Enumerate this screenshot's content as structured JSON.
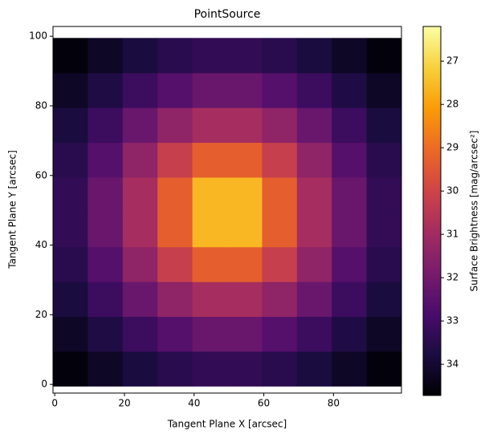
{
  "chart_data": {
    "type": "heatmap",
    "title": "PointSource",
    "x_label": "Tangent Plane X [arcsec]",
    "y_label": "Tangent Plane Y [arcsec]",
    "colorbar_label": "Surface Brightness [mag/arcsec²]",
    "x": [
      4.5,
      14.5,
      24.5,
      34.5,
      44.5,
      54.5,
      64.5,
      74.5,
      84.5,
      94.5
    ],
    "y": [
      4.5,
      14.5,
      24.5,
      34.5,
      44.5,
      54.5,
      64.5,
      74.5,
      84.5,
      94.5
    ],
    "z": [
      [
        34.6,
        34.2,
        33.8,
        33.5,
        33.3,
        33.3,
        33.5,
        33.8,
        34.2,
        34.6
      ],
      [
        34.2,
        33.7,
        33.1,
        32.6,
        32.2,
        32.2,
        32.6,
        33.1,
        33.7,
        34.2
      ],
      [
        33.8,
        33.1,
        32.2,
        31.4,
        30.9,
        30.9,
        31.4,
        32.2,
        33.1,
        33.8
      ],
      [
        33.5,
        32.6,
        31.4,
        30.2,
        29.3,
        29.3,
        30.2,
        31.4,
        32.6,
        33.5
      ],
      [
        33.3,
        32.2,
        30.9,
        29.3,
        27.6,
        27.6,
        29.3,
        30.9,
        32.2,
        33.3
      ],
      [
        33.3,
        32.2,
        30.9,
        29.3,
        27.6,
        27.6,
        29.3,
        30.9,
        32.2,
        33.3
      ],
      [
        33.5,
        32.6,
        31.4,
        30.2,
        29.3,
        29.3,
        30.2,
        31.4,
        32.6,
        33.5
      ],
      [
        33.8,
        33.1,
        32.2,
        31.4,
        30.9,
        30.9,
        31.4,
        32.2,
        33.1,
        33.8
      ],
      [
        34.2,
        33.7,
        33.1,
        32.6,
        32.2,
        32.2,
        32.6,
        33.1,
        33.7,
        34.2
      ],
      [
        34.6,
        34.2,
        33.8,
        33.5,
        33.3,
        33.3,
        33.5,
        33.8,
        34.2,
        34.6
      ]
    ],
    "xlim": [
      -0.5,
      99.5
    ],
    "ylim": [
      -2.5,
      102.8
    ],
    "xticks": [
      0,
      20,
      40,
      60,
      80
    ],
    "yticks": [
      0,
      20,
      40,
      60,
      80,
      100
    ],
    "clim": [
      34.72,
      26.2
    ],
    "cticks": [
      27,
      28,
      29,
      30,
      31,
      32,
      33,
      34
    ],
    "colormap": [
      "#000004",
      "#1b0c41",
      "#4a0c6b",
      "#781c6d",
      "#a52c60",
      "#cf4446",
      "#ed6925",
      "#fb9b06",
      "#f7d13d",
      "#fcffa4"
    ]
  }
}
